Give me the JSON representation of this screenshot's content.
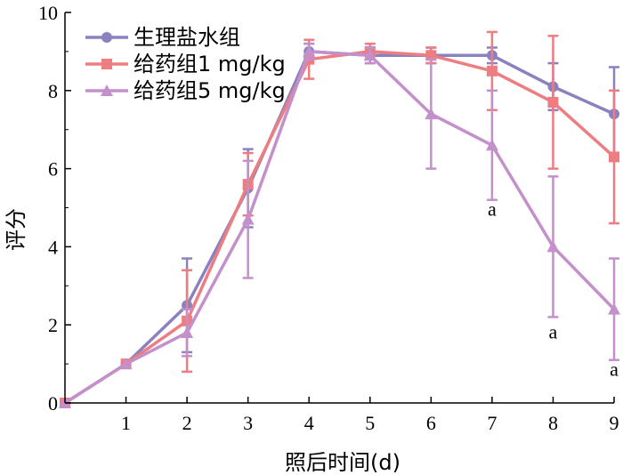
{
  "chart_data": {
    "type": "line",
    "title": "",
    "xlabel": "照后时间(d)",
    "ylabel": "评分",
    "xlim": [
      0,
      9
    ],
    "ylim": [
      0,
      10
    ],
    "x_ticks": [
      1,
      2,
      3,
      4,
      5,
      6,
      7,
      8,
      9
    ],
    "y_ticks": [
      0,
      2,
      4,
      6,
      8,
      10
    ],
    "x_origin_label": "0",
    "grid": false,
    "legend_position": "top-left",
    "x": [
      0,
      1,
      2,
      3,
      4,
      5,
      6,
      7,
      8,
      9
    ],
    "series": [
      {
        "name": "生理盐水组",
        "marker": "circle",
        "color": "#8a82c0",
        "values": [
          0,
          1.0,
          2.5,
          5.5,
          9.0,
          8.9,
          8.9,
          8.9,
          8.1,
          7.4
        ],
        "errors": [
          0,
          0,
          1.2,
          1.0,
          0.2,
          0.2,
          0.2,
          0.2,
          0.6,
          1.2
        ]
      },
      {
        "name": "给药组1 mg/kg",
        "marker": "square",
        "color": "#ee7d82",
        "values": [
          0,
          1.0,
          2.1,
          5.6,
          8.8,
          9.0,
          8.9,
          8.5,
          7.7,
          6.3
        ],
        "errors": [
          0,
          0,
          1.3,
          0.8,
          0.5,
          0.2,
          0.2,
          1.0,
          1.7,
          1.7
        ]
      },
      {
        "name": "给药组5 mg/kg",
        "marker": "triangle",
        "color": "#c490cb",
        "values": [
          0,
          1.0,
          1.8,
          4.7,
          9.0,
          8.9,
          7.4,
          6.6,
          4.0,
          2.4
        ],
        "errors": [
          0,
          0,
          0.6,
          1.5,
          0.2,
          0.2,
          1.4,
          1.4,
          1.8,
          1.3
        ]
      }
    ],
    "annotations": [
      {
        "x": 7,
        "y": 4.8,
        "text": "a"
      },
      {
        "x": 8,
        "y": 1.65,
        "text": "a"
      },
      {
        "x": 9,
        "y": 0.7,
        "text": "a"
      }
    ]
  }
}
